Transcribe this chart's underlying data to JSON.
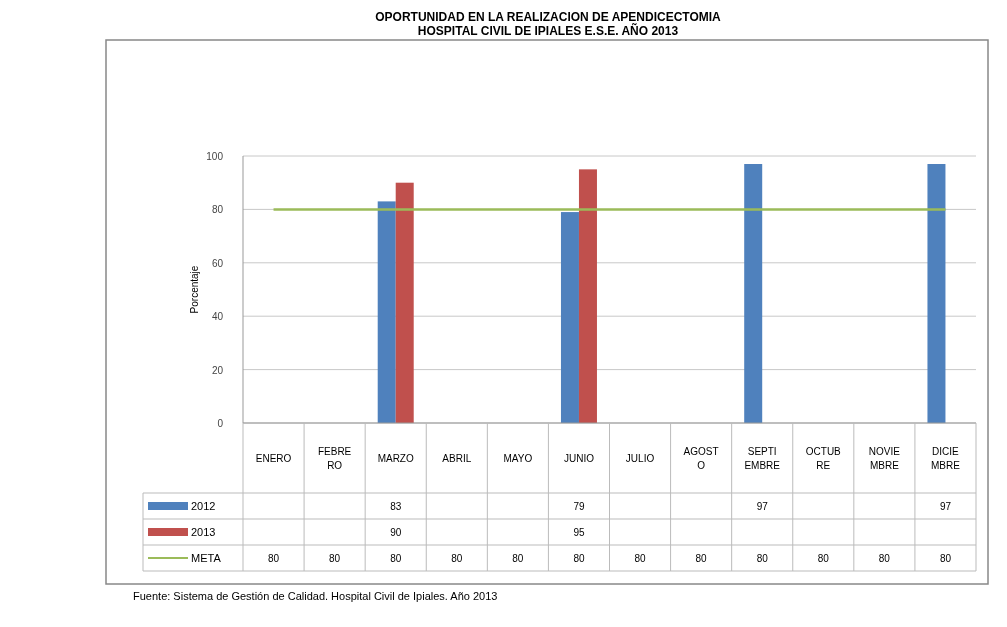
{
  "chart_data": {
    "type": "bar",
    "title": "OPORTUNIDAD EN LA REALIZACION DE APENDICECTOMIA\nHOSPITAL CIVIL DE IPIALES E.S.E. AÑO 2013",
    "ylabel": "Porcentaje",
    "categories": [
      "ENERO",
      "FEBRERO",
      "MARZO",
      "ABRIL",
      "MAYO",
      "JUNIO",
      "JULIO",
      "AGOSTO",
      "SEPTIEMBRE",
      "OCTUBRE",
      "NOVIEMBRE",
      "DICIEMBRE"
    ],
    "series": [
      {
        "name": "2012",
        "color": "#4f81bd",
        "values": [
          null,
          null,
          83,
          null,
          null,
          79,
          null,
          null,
          97,
          null,
          null,
          97
        ]
      },
      {
        "name": "2013",
        "color": "#c0504d",
        "values": [
          null,
          null,
          90,
          null,
          null,
          95,
          null,
          null,
          null,
          null,
          null,
          null
        ]
      },
      {
        "name": "META",
        "type": "line",
        "color": "#9bbb59",
        "values": [
          80,
          80,
          80,
          80,
          80,
          80,
          80,
          80,
          80,
          80,
          80,
          80
        ]
      }
    ],
    "ylim": [
      0,
      100
    ],
    "yticks": [
      0,
      20,
      40,
      60,
      80,
      100
    ],
    "grid": "y",
    "legend": "bottom",
    "data_labels": true,
    "annotations": [
      "Fuente: Sistema de Gestión de Calidad. Hospital Civil de Ipiales. Año 2013"
    ]
  }
}
